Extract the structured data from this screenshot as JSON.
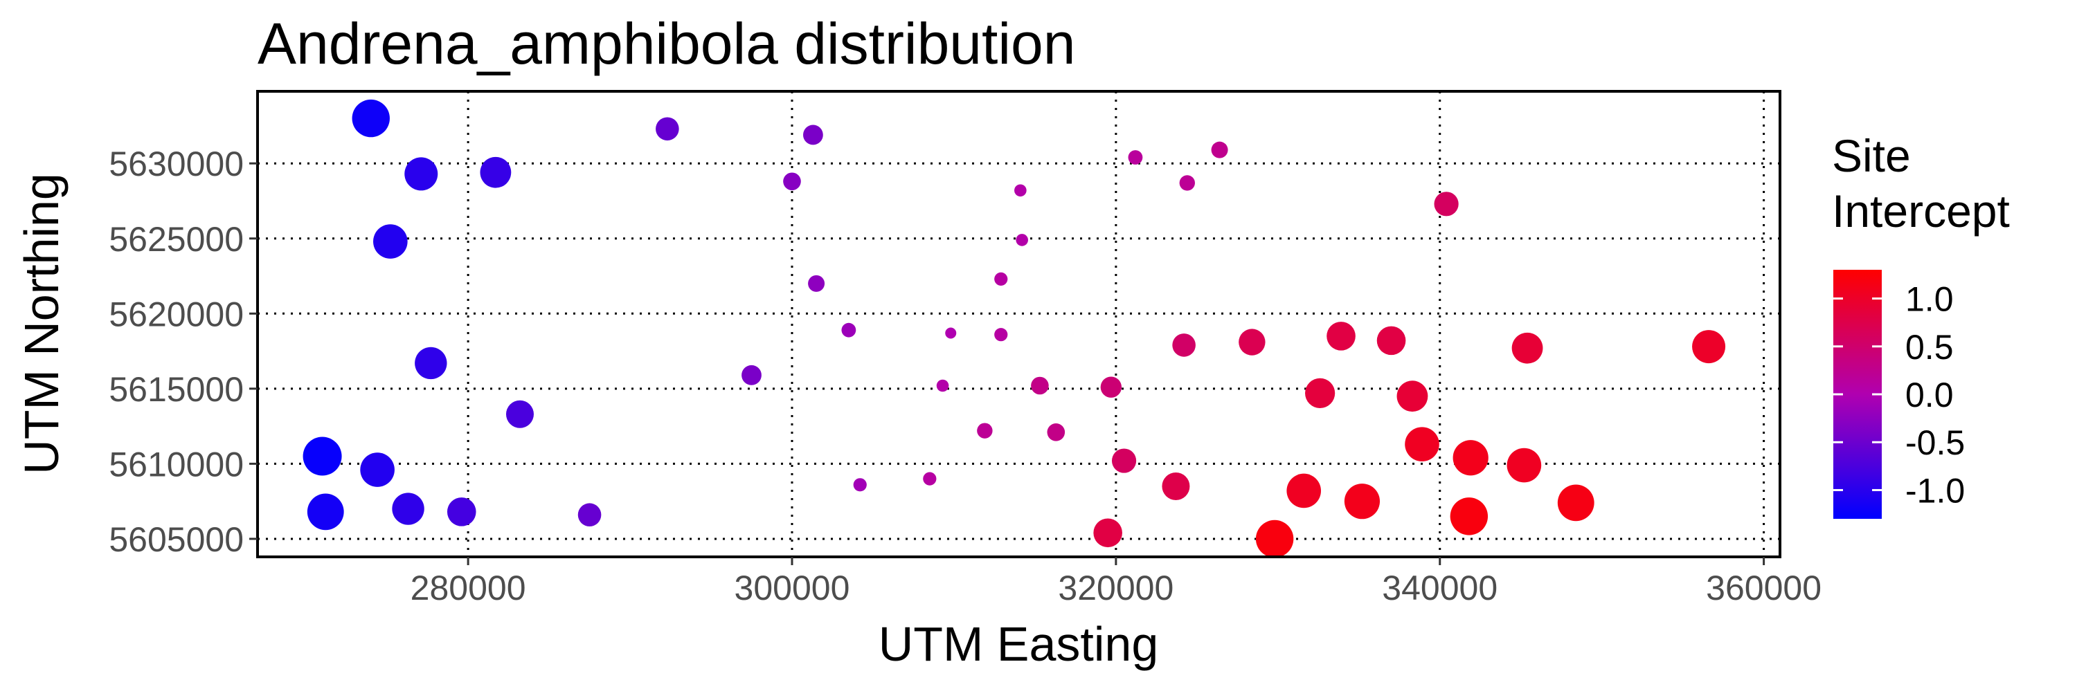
{
  "chart_data": {
    "type": "scatter",
    "title": "Andrena_amphibola distribution",
    "xlabel": "UTM Easting",
    "ylabel": "UTM Northing",
    "xlim": [
      267000,
      361000
    ],
    "ylim": [
      5603800,
      5634800
    ],
    "x_ticks": [
      280000,
      300000,
      320000,
      340000,
      360000
    ],
    "x_tick_labels": [
      "280000",
      "300000",
      "320000",
      "340000",
      "360000"
    ],
    "y_ticks": [
      5605000,
      5610000,
      5615000,
      5620000,
      5625000,
      5630000
    ],
    "y_tick_labels": [
      "5605000",
      "5610000",
      "5615000",
      "5620000",
      "5625000",
      "5630000"
    ],
    "grid": "dotted major gridlines",
    "legend": {
      "title_lines": [
        "Site",
        "Intercept"
      ],
      "placement": "right",
      "range": [
        -1.3,
        1.3
      ],
      "ticks": [
        1.0,
        0.5,
        0.0,
        -0.5,
        -1.0
      ],
      "tick_labels": [
        "1.0",
        "0.5",
        "0.0",
        "-0.5",
        "-1.0"
      ],
      "color_low": "#0000ff",
      "color_mid": "#b000b0",
      "color_high": "#ff0000"
    },
    "point_size_encoding": "larger points for larger absolute intercept",
    "points": [
      {
        "x": 274000,
        "y": 5633000,
        "intercept": -1.2
      },
      {
        "x": 292300,
        "y": 5632300,
        "intercept": -0.55
      },
      {
        "x": 301300,
        "y": 5631900,
        "intercept": -0.4
      },
      {
        "x": 277100,
        "y": 5629300,
        "intercept": -1.0
      },
      {
        "x": 281700,
        "y": 5629400,
        "intercept": -0.9
      },
      {
        "x": 300000,
        "y": 5628800,
        "intercept": -0.3
      },
      {
        "x": 321200,
        "y": 5630400,
        "intercept": 0.15
      },
      {
        "x": 326400,
        "y": 5630900,
        "intercept": 0.25
      },
      {
        "x": 324400,
        "y": 5628700,
        "intercept": 0.2
      },
      {
        "x": 314100,
        "y": 5628200,
        "intercept": 0.05
      },
      {
        "x": 340400,
        "y": 5627300,
        "intercept": 0.6
      },
      {
        "x": 275200,
        "y": 5624800,
        "intercept": -1.05
      },
      {
        "x": 314200,
        "y": 5624900,
        "intercept": 0.05
      },
      {
        "x": 301500,
        "y": 5622000,
        "intercept": -0.25
      },
      {
        "x": 312900,
        "y": 5622300,
        "intercept": 0.1
      },
      {
        "x": 303500,
        "y": 5618900,
        "intercept": -0.15
      },
      {
        "x": 309800,
        "y": 5618700,
        "intercept": 0.0
      },
      {
        "x": 312900,
        "y": 5618600,
        "intercept": 0.1
      },
      {
        "x": 324200,
        "y": 5617900,
        "intercept": 0.55
      },
      {
        "x": 328400,
        "y": 5618100,
        "intercept": 0.7
      },
      {
        "x": 333900,
        "y": 5618500,
        "intercept": 0.8
      },
      {
        "x": 337000,
        "y": 5618200,
        "intercept": 0.8
      },
      {
        "x": 345400,
        "y": 5617700,
        "intercept": 0.9
      },
      {
        "x": 356600,
        "y": 5617800,
        "intercept": 1.0
      },
      {
        "x": 277700,
        "y": 5616700,
        "intercept": -0.95
      },
      {
        "x": 297500,
        "y": 5615900,
        "intercept": -0.4
      },
      {
        "x": 309300,
        "y": 5615200,
        "intercept": 0.05
      },
      {
        "x": 315300,
        "y": 5615200,
        "intercept": 0.3
      },
      {
        "x": 319700,
        "y": 5615100,
        "intercept": 0.45
      },
      {
        "x": 332600,
        "y": 5614700,
        "intercept": 0.85
      },
      {
        "x": 338300,
        "y": 5614500,
        "intercept": 0.9
      },
      {
        "x": 283200,
        "y": 5613300,
        "intercept": -0.75
      },
      {
        "x": 311900,
        "y": 5612200,
        "intercept": 0.2
      },
      {
        "x": 316300,
        "y": 5612100,
        "intercept": 0.3
      },
      {
        "x": 338900,
        "y": 5611300,
        "intercept": 1.05
      },
      {
        "x": 271000,
        "y": 5610500,
        "intercept": -1.25
      },
      {
        "x": 274400,
        "y": 5609600,
        "intercept": -1.05
      },
      {
        "x": 320500,
        "y": 5610200,
        "intercept": 0.6
      },
      {
        "x": 341900,
        "y": 5610400,
        "intercept": 1.1
      },
      {
        "x": 345200,
        "y": 5609900,
        "intercept": 1.05
      },
      {
        "x": 304200,
        "y": 5608600,
        "intercept": -0.1
      },
      {
        "x": 308500,
        "y": 5609000,
        "intercept": 0.1
      },
      {
        "x": 323700,
        "y": 5608500,
        "intercept": 0.75
      },
      {
        "x": 331600,
        "y": 5608200,
        "intercept": 1.05
      },
      {
        "x": 335200,
        "y": 5607500,
        "intercept": 1.1
      },
      {
        "x": 348400,
        "y": 5607400,
        "intercept": 1.15
      },
      {
        "x": 271200,
        "y": 5606800,
        "intercept": -1.15
      },
      {
        "x": 276300,
        "y": 5607000,
        "intercept": -0.95
      },
      {
        "x": 279600,
        "y": 5606800,
        "intercept": -0.8
      },
      {
        "x": 287500,
        "y": 5606600,
        "intercept": -0.55
      },
      {
        "x": 341800,
        "y": 5606500,
        "intercept": 1.2
      },
      {
        "x": 319500,
        "y": 5605400,
        "intercept": 0.8
      },
      {
        "x": 329800,
        "y": 5605000,
        "intercept": 1.2
      }
    ]
  }
}
